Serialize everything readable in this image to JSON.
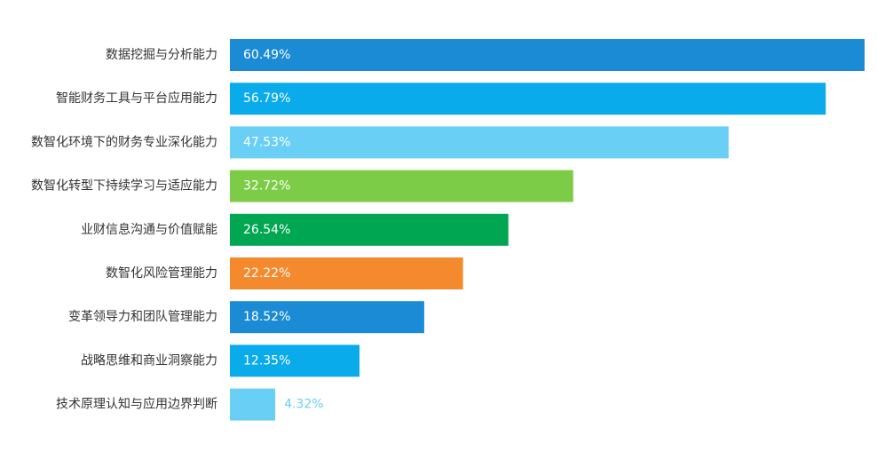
{
  "chart_data": {
    "type": "bar",
    "orientation": "horizontal",
    "categories": [
      "数据挖掘与分析能力",
      "智能财务工具与平台应用能力",
      "数智化环境下的财务专业深化能力",
      "数智化转型下持续学习与适应能力",
      "业财信息沟通与价值赋能",
      "数智化风险管理能力",
      "变革领导力和团队管理能力",
      "战略思维和商业洞察能力",
      "技术原理认知与应用边界判断"
    ],
    "values": [
      60.49,
      56.79,
      47.53,
      32.72,
      26.54,
      22.22,
      18.52,
      12.35,
      4.32
    ],
    "value_labels": [
      "60.49%",
      "56.79%",
      "47.53%",
      "32.72%",
      "26.54%",
      "22.22%",
      "18.52%",
      "12.35%",
      "4.32%"
    ],
    "colors": [
      "#1a8bd4",
      "#0aabea",
      "#69cff5",
      "#7dcc47",
      "#00a651",
      "#f48a2d",
      "#1a8bd4",
      "#0aabea",
      "#69cff5"
    ],
    "title": "",
    "xlabel": "",
    "ylabel": "",
    "xlim": [
      0,
      60.49
    ],
    "grid": false,
    "legend": "none"
  }
}
